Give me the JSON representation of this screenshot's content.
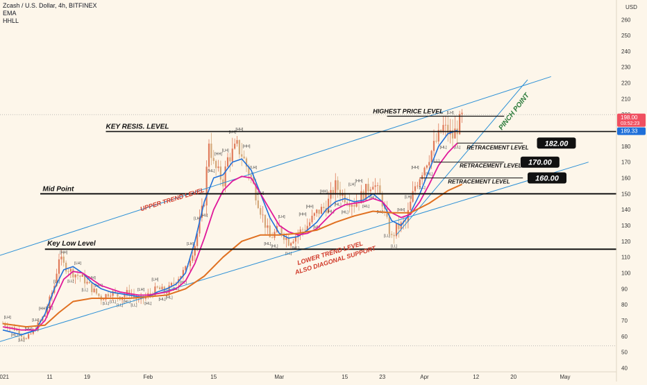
{
  "header": {
    "symbol": "Zcash / U.S. Dollar, 4h, BITFINEX",
    "indicator1": "EMA",
    "indicator2": "HHLL"
  },
  "price_axis": {
    "currency": "USD",
    "ticks": [
      260,
      250,
      240,
      230,
      220,
      210,
      200,
      190,
      180,
      170,
      160,
      150,
      140,
      130,
      120,
      110,
      100,
      90,
      80,
      70,
      60,
      50,
      40
    ]
  },
  "time_axis": {
    "labels": [
      {
        "label": "2021",
        "day": 0
      },
      {
        "label": "11",
        "day": 10
      },
      {
        "label": "19",
        "day": 18
      },
      {
        "label": "Feb",
        "day": 31
      },
      {
        "label": "15",
        "day": 45
      },
      {
        "label": "Mar",
        "day": 59
      },
      {
        "label": "15",
        "day": 73
      },
      {
        "label": "23",
        "day": 81
      },
      {
        "label": "Apr",
        "day": 90
      },
      {
        "label": "12",
        "day": 101
      },
      {
        "label": "20",
        "day": 109
      },
      {
        "label": "May",
        "day": 120
      }
    ]
  },
  "price_badges": {
    "last_price": "198.00",
    "countdown": "03:52:23",
    "level_price": "189.33"
  },
  "colors": {
    "background": "#fdf6ea",
    "up_candle": "#e07b5a",
    "down_candle": "#d4a87a",
    "ema_fast": "#1e6fd9",
    "ema_mid": "#e0189a",
    "ema_slow": "#e07020",
    "channel": "#2a8fd6",
    "annotation_red": "#d03a2a",
    "price_badge": "#f05060",
    "level_badge": "#1e6fd9"
  },
  "annotations": {
    "highest_price": "HIGHEST PRICE LEVEL",
    "key_resis": "KEY RESIS. LEVEL",
    "mid_point": "Mid Point",
    "key_low": "Key Low Level",
    "retracement": "RETRACEMENT LEVEL",
    "upper_trend": "UPPER TREND LEVEL",
    "lower_trend_1": "LOWER TREND LEVEL",
    "lower_trend_2": "ALSO DIAGONAL SUPPORT",
    "pinch_point": "PINCH POINT",
    "box_182": "182.00",
    "box_170": "170.00",
    "box_160": "160.00"
  },
  "chart_data": {
    "type": "line",
    "title": "Zcash / U.S. Dollar, 4h, BITFINEX",
    "ylabel": "USD",
    "ylim": [
      38,
      268
    ],
    "xlim_days": [
      0,
      126
    ],
    "price_path": [
      [
        0,
        68
      ],
      [
        3,
        64
      ],
      [
        5,
        58
      ],
      [
        7,
        65
      ],
      [
        9,
        74
      ],
      [
        11,
        92
      ],
      [
        12,
        110
      ],
      [
        13,
        105
      ],
      [
        15,
        100
      ],
      [
        17,
        97
      ],
      [
        19,
        90
      ],
      [
        21,
        84
      ],
      [
        23,
        88
      ],
      [
        25,
        85
      ],
      [
        27,
        88
      ],
      [
        29,
        82
      ],
      [
        31,
        86
      ],
      [
        33,
        90
      ],
      [
        35,
        88
      ],
      [
        37,
        96
      ],
      [
        39,
        102
      ],
      [
        41,
        118
      ],
      [
        43,
        146
      ],
      [
        44,
        184
      ],
      [
        45,
        168
      ],
      [
        47,
        158
      ],
      [
        48,
        172
      ],
      [
        50,
        180
      ],
      [
        51,
        175
      ],
      [
        53,
        160
      ],
      [
        55,
        140
      ],
      [
        57,
        122
      ],
      [
        59,
        128
      ],
      [
        61,
        120
      ],
      [
        63,
        125
      ],
      [
        65,
        130
      ],
      [
        67,
        138
      ],
      [
        69,
        142
      ],
      [
        71,
        155
      ],
      [
        73,
        148
      ],
      [
        75,
        144
      ],
      [
        77,
        150
      ],
      [
        79,
        158
      ],
      [
        81,
        145
      ],
      [
        82,
        132
      ],
      [
        83,
        122
      ],
      [
        84,
        128
      ],
      [
        86,
        132
      ],
      [
        88,
        155
      ],
      [
        90,
        168
      ],
      [
        92,
        180
      ],
      [
        94,
        192
      ],
      [
        96,
        186
      ],
      [
        98,
        198
      ]
    ],
    "series": [
      {
        "name": "EMA",
        "values": [
          [
            0,
            64
          ],
          [
            4,
            61
          ],
          [
            7,
            64
          ],
          [
            9,
            74
          ],
          [
            11,
            90
          ],
          [
            13,
            102
          ],
          [
            15,
            104
          ],
          [
            17,
            100
          ],
          [
            19,
            94
          ],
          [
            21,
            90
          ],
          [
            23,
            88
          ],
          [
            25,
            87
          ],
          [
            27,
            86
          ],
          [
            29,
            85
          ],
          [
            31,
            85
          ],
          [
            33,
            88
          ],
          [
            35,
            90
          ],
          [
            37,
            93
          ],
          [
            39,
            100
          ],
          [
            41,
            120
          ],
          [
            43,
            145
          ],
          [
            45,
            160
          ],
          [
            47,
            162
          ],
          [
            49,
            170
          ],
          [
            51,
            172
          ],
          [
            53,
            165
          ],
          [
            55,
            150
          ],
          [
            57,
            135
          ],
          [
            59,
            125
          ],
          [
            61,
            122
          ],
          [
            63,
            123
          ],
          [
            65,
            127
          ],
          [
            67,
            132
          ],
          [
            69,
            140
          ],
          [
            71,
            145
          ],
          [
            73,
            147
          ],
          [
            75,
            145
          ],
          [
            77,
            146
          ],
          [
            79,
            150
          ],
          [
            81,
            145
          ],
          [
            83,
            133
          ],
          [
            85,
            130
          ],
          [
            87,
            138
          ],
          [
            89,
            150
          ],
          [
            91,
            165
          ],
          [
            93,
            180
          ],
          [
            95,
            188
          ],
          [
            97,
            190
          ]
        ]
      },
      {
        "name": "EMA",
        "values": [
          [
            0,
            66
          ],
          [
            4,
            64
          ],
          [
            7,
            64
          ],
          [
            9,
            70
          ],
          [
            11,
            83
          ],
          [
            13,
            96
          ],
          [
            15,
            101
          ],
          [
            17,
            100
          ],
          [
            19,
            96
          ],
          [
            21,
            92
          ],
          [
            23,
            90
          ],
          [
            25,
            88
          ],
          [
            27,
            87
          ],
          [
            29,
            86
          ],
          [
            31,
            86
          ],
          [
            33,
            87
          ],
          [
            35,
            88
          ],
          [
            37,
            90
          ],
          [
            39,
            95
          ],
          [
            41,
            106
          ],
          [
            43,
            122
          ],
          [
            45,
            140
          ],
          [
            47,
            152
          ],
          [
            49,
            158
          ],
          [
            51,
            161
          ],
          [
            53,
            160
          ],
          [
            55,
            150
          ],
          [
            57,
            140
          ],
          [
            59,
            130
          ],
          [
            61,
            126
          ],
          [
            63,
            124
          ],
          [
            65,
            125
          ],
          [
            67,
            128
          ],
          [
            69,
            134
          ],
          [
            71,
            140
          ],
          [
            73,
            143
          ],
          [
            75,
            144
          ],
          [
            77,
            145
          ],
          [
            79,
            147
          ],
          [
            81,
            145
          ],
          [
            83,
            138
          ],
          [
            85,
            135
          ],
          [
            87,
            137
          ],
          [
            89,
            145
          ],
          [
            91,
            156
          ],
          [
            93,
            168
          ],
          [
            95,
            176
          ],
          [
            97,
            182
          ]
        ]
      },
      {
        "name": "EMA",
        "values": [
          [
            0,
            68
          ],
          [
            5,
            66
          ],
          [
            9,
            67
          ],
          [
            12,
            75
          ],
          [
            15,
            82
          ],
          [
            19,
            84
          ],
          [
            23,
            84
          ],
          [
            27,
            84
          ],
          [
            31,
            85
          ],
          [
            35,
            86
          ],
          [
            39,
            90
          ],
          [
            43,
            98
          ],
          [
            47,
            110
          ],
          [
            51,
            120
          ],
          [
            55,
            124
          ],
          [
            59,
            124
          ],
          [
            63,
            125
          ],
          [
            67,
            127
          ],
          [
            71,
            132
          ],
          [
            75,
            136
          ],
          [
            79,
            139
          ],
          [
            83,
            138
          ],
          [
            87,
            138
          ],
          [
            91,
            144
          ],
          [
            95,
            152
          ],
          [
            98,
            156
          ]
        ]
      }
    ],
    "levels": [
      {
        "name": "HIGHEST PRICE LEVEL",
        "value": 199
      },
      {
        "name": "KEY RESIS. LEVEL",
        "value": 189.33
      },
      {
        "name": "RETRACEMENT LEVEL",
        "value": 182
      },
      {
        "name": "RETRACEMENT LEVEL",
        "value": 170
      },
      {
        "name": "RETRACEMENT LEVEL",
        "value": 160
      },
      {
        "name": "Mid Point",
        "value": 150
      },
      {
        "name": "Key Low Level",
        "value": 115
      }
    ],
    "trendlines": [
      {
        "name": "UPPER TREND LEVEL",
        "from": [
          -8,
          104
        ],
        "to": [
          117,
          224
        ]
      },
      {
        "name": "LOWER TREND LEVEL",
        "from": [
          -8,
          50
        ],
        "to": [
          125,
          170
        ]
      },
      {
        "name": "PINCH POINT",
        "from": [
          84,
          124
        ],
        "to": [
          112,
          222
        ]
      }
    ],
    "hhll_labels": [
      "[HH]",
      "[LH]",
      "[HL]",
      "[LL]"
    ]
  }
}
